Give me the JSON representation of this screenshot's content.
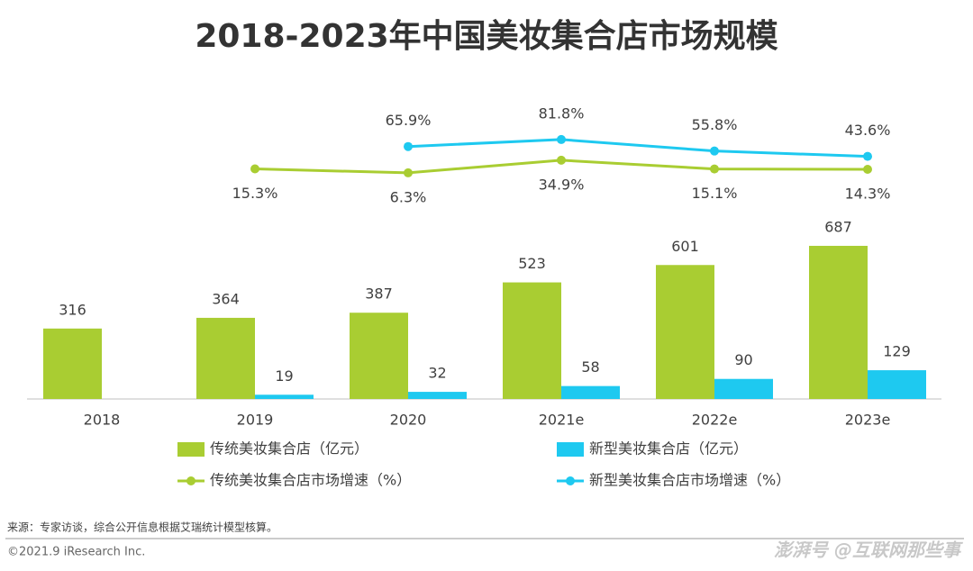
{
  "chart_data": {
    "type": "bar",
    "title": "2018-2023年中国美妆集合店市场规模",
    "categories": [
      "2018",
      "2019",
      "2020",
      "2021e",
      "2022e",
      "2023e"
    ],
    "ylim": [
      0,
      800
    ],
    "y2lim": [
      0,
      100
    ],
    "series": [
      {
        "name": "传统美妆集合店（亿元）",
        "type": "bar",
        "color": "#a9cd32",
        "values": [
          316,
          364,
          387,
          523,
          601,
          687
        ]
      },
      {
        "name": "新型美妆集合店（亿元）",
        "type": "bar",
        "color": "#1ec9f0",
        "values": [
          null,
          19,
          32,
          58,
          90,
          129
        ]
      },
      {
        "name": "传统美妆集合店市场增速（%）",
        "type": "line",
        "axis": "y2",
        "color": "#a9cd32",
        "label_side": "below",
        "values": [
          null,
          15.3,
          6.3,
          34.9,
          15.1,
          14.3
        ],
        "value_labels": [
          null,
          "15.3%",
          "6.3%",
          "34.9%",
          "15.1%",
          "14.3%"
        ]
      },
      {
        "name": "新型美妆集合店市场增速（%）",
        "type": "line",
        "axis": "y2",
        "color": "#1ec9f0",
        "label_side": "above",
        "values": [
          null,
          null,
          65.9,
          81.8,
          55.8,
          43.6
        ],
        "value_labels": [
          null,
          null,
          "65.9%",
          "81.8%",
          "55.8%",
          "43.6%"
        ]
      }
    ],
    "source": "来源：专家访谈，综合公开信息根据艾瑞统计模型核算。",
    "copyright": "©2021.9 iResearch Inc.",
    "watermark": "澎湃号 @互联网那些事"
  }
}
